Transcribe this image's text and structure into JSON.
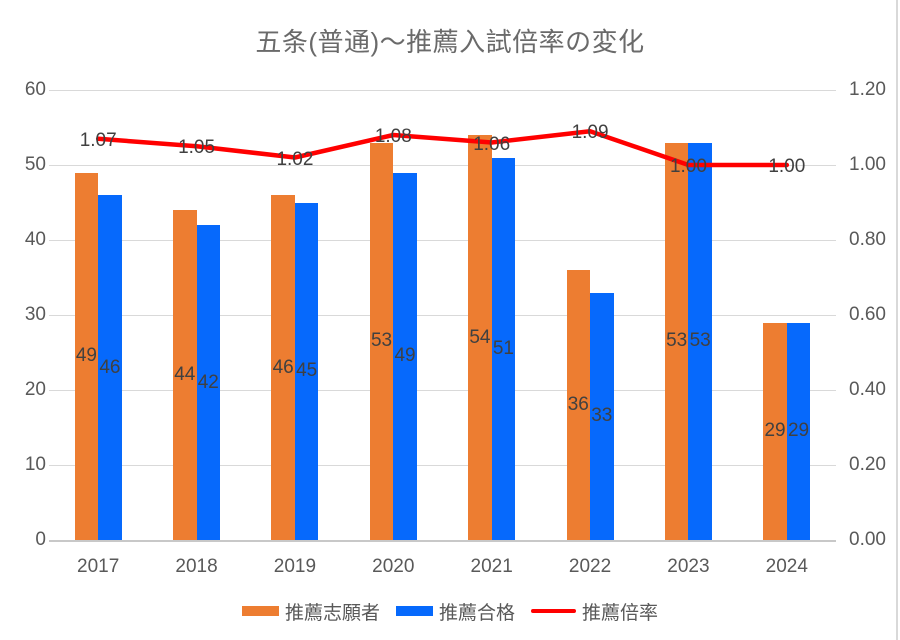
{
  "title": "五条(普通)〜推薦入試倍率の変化",
  "chart_data": {
    "type": "bar",
    "subtype": "combo-bar-line-dual-axis",
    "title": "五条(普通)〜推薦入試倍率の変化",
    "categories": [
      "2017",
      "2018",
      "2019",
      "2020",
      "2021",
      "2022",
      "2023",
      "2024"
    ],
    "series": [
      {
        "name": "推薦志願者",
        "type": "bar",
        "axis": "left",
        "color": "#ED7D31",
        "values": [
          49,
          44,
          46,
          53,
          54,
          36,
          53,
          29
        ],
        "labels": [
          "49",
          "44",
          "46",
          "53",
          "54",
          "36",
          "53",
          "29"
        ]
      },
      {
        "name": "推薦合格",
        "type": "bar",
        "axis": "left",
        "color": "#0669FC",
        "values": [
          46,
          42,
          45,
          49,
          51,
          33,
          53,
          29
        ],
        "labels": [
          "46",
          "42",
          "45",
          "49",
          "51",
          "33",
          "53",
          "29"
        ]
      },
      {
        "name": "推薦倍率",
        "type": "line",
        "axis": "right",
        "color": "#FF0000",
        "values": [
          1.07,
          1.05,
          1.02,
          1.08,
          1.06,
          1.09,
          1.0,
          1.0
        ],
        "labels": [
          "1.07",
          "1.05",
          "1.02",
          "1.08",
          "1.06",
          "1.09",
          "1.00",
          "1.00"
        ]
      }
    ],
    "left_axis": {
      "min": 0,
      "max": 60,
      "step": 10,
      "ticks": [
        "0",
        "10",
        "20",
        "30",
        "40",
        "50",
        "60"
      ]
    },
    "right_axis": {
      "min": 0,
      "max": 1.2,
      "step": 0.2,
      "ticks": [
        "0.00",
        "0.20",
        "0.40",
        "0.60",
        "0.80",
        "1.00",
        "1.20"
      ]
    },
    "grid": true,
    "legend_position": "bottom"
  },
  "colors": {
    "applicants_bar": "#ED7D31",
    "passers_bar": "#0669FC",
    "ratio_line": "#FF0000",
    "gridline": "#d9d9d9",
    "axis_text": "#595959",
    "data_label": "#404040",
    "title_text": "#6a6a6a"
  }
}
